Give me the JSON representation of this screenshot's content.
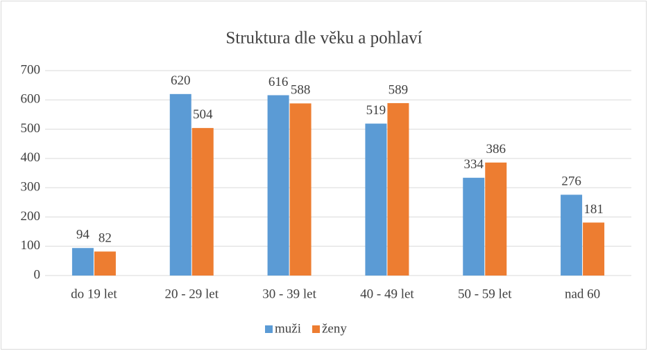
{
  "chart_data": {
    "type": "bar",
    "title": "Struktura dle věku a pohlaví",
    "categories": [
      "do 19 let",
      "20 - 29 let",
      "30 - 39 let",
      "40 - 49 let",
      "50 - 59 let",
      "nad 60"
    ],
    "series": [
      {
        "name": "muži",
        "color": "#5b9bd5",
        "values": [
          94,
          620,
          616,
          519,
          334,
          276
        ]
      },
      {
        "name": "ženy",
        "color": "#ed7d31",
        "values": [
          82,
          504,
          588,
          589,
          386,
          181
        ]
      }
    ],
    "ylim": [
      0,
      700
    ],
    "yticks": [
      0,
      100,
      200,
      300,
      400,
      500,
      600,
      700
    ],
    "grid": true,
    "legend": "bottom"
  }
}
